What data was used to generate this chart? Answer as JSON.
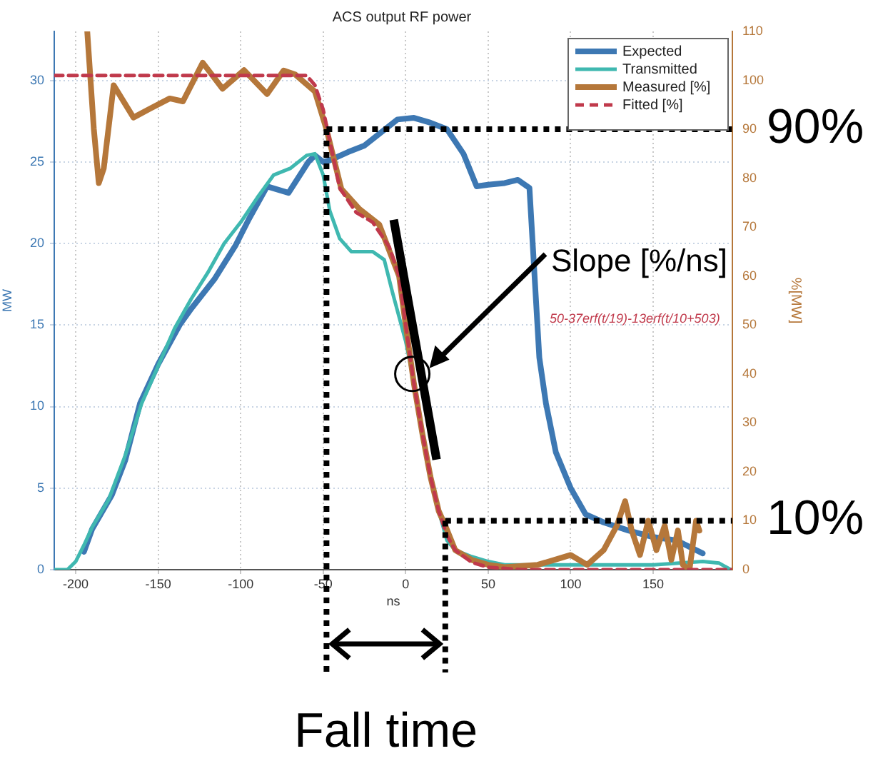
{
  "chart_data": {
    "type": "line",
    "title": "ACS output RF power",
    "xlabel": "ns",
    "ylabel": "MW",
    "y2label": "%[MW]",
    "xlim": [
      -213,
      198
    ],
    "xticks": [
      -200,
      -150,
      -100,
      -50,
      0,
      50,
      100,
      150
    ],
    "ylim": [
      0,
      33
    ],
    "yticks": [
      0,
      5,
      10,
      15,
      20,
      25,
      30
    ],
    "y2lim": [
      0,
      110
    ],
    "y2ticks": [
      0,
      10,
      20,
      30,
      40,
      50,
      60,
      70,
      80,
      90,
      100,
      110
    ],
    "grid": true,
    "legend": "top right",
    "series": [
      {
        "name": "Expected",
        "color": "#3d78b3",
        "x": [
          -195,
          -190,
          -178,
          -170,
          -161,
          -150,
          -137,
          -130,
          -116,
          -103,
          -95,
          -84,
          -71,
          -59,
          -55,
          -50,
          -46,
          -35,
          -25,
          -15,
          -5,
          5,
          15,
          25,
          35,
          43,
          50,
          60,
          68,
          75,
          81,
          85,
          91,
          100,
          109,
          120,
          135,
          150,
          164,
          180
        ],
        "values": [
          1.1,
          2.5,
          4.6,
          6.7,
          10.2,
          12.6,
          15,
          16,
          17.8,
          19.9,
          21.5,
          23.5,
          23.1,
          25,
          25.4,
          25,
          25.1,
          25.6,
          26,
          26.8,
          27.6,
          27.7,
          27.4,
          27,
          25.5,
          23.5,
          23.6,
          23.7,
          23.9,
          23.4,
          13,
          10.2,
          7.2,
          5,
          3.4,
          2.9,
          2.4,
          2,
          1.8,
          1
        ]
      },
      {
        "name": "Transmitted",
        "color": "#3fb8b0",
        "x": [
          -213,
          -205,
          -200,
          -195,
          -190,
          -180,
          -170,
          -160,
          -150,
          -140,
          -130,
          -120,
          -110,
          -100,
          -90,
          -80,
          -70,
          -60,
          -55,
          -50,
          -46,
          -40,
          -33,
          -20,
          -13,
          -8,
          -4,
          0,
          5,
          10,
          15,
          20,
          25,
          30,
          40,
          50,
          60,
          100,
          150,
          180,
          190,
          197
        ],
        "values": [
          0,
          0,
          0.5,
          1.5,
          2.6,
          4.3,
          7,
          10.2,
          12.5,
          14.8,
          16.6,
          18.2,
          20,
          21.3,
          22.8,
          24.2,
          24.6,
          25.4,
          25.5,
          24.2,
          22,
          20.3,
          19.5,
          19.5,
          19,
          17,
          15.5,
          14,
          11.5,
          8.5,
          5.8,
          3.6,
          1.8,
          1.2,
          0.8,
          0.5,
          0.3,
          0.3,
          0.3,
          0.5,
          0.4,
          0
        ],
        "axis": "y"
      },
      {
        "name": "Measured [%]",
        "color": "#b5773a",
        "axis": "y2",
        "x": [
          -193,
          -189,
          -186,
          -183,
          -177,
          -165,
          -155,
          -143,
          -135,
          -123,
          -111,
          -98,
          -84,
          -74,
          -67,
          -55,
          -48,
          -39,
          -28,
          -16,
          -4,
          0,
          5,
          10,
          15,
          20,
          24,
          30,
          40,
          50,
          60,
          80,
          90,
          100,
          110,
          120,
          128,
          133,
          137,
          142,
          147,
          152,
          157,
          161,
          165,
          168,
          172,
          176,
          178
        ],
        "values": [
          110,
          90,
          79,
          82,
          99,
          92.4,
          94.2,
          96.3,
          95.7,
          103.6,
          98.3,
          102.1,
          97.2,
          102,
          101.2,
          97.7,
          90,
          77.8,
          73.7,
          70.5,
          60,
          50,
          38,
          28,
          19,
          12,
          9,
          4,
          2,
          1,
          0.5,
          1,
          2,
          3,
          1,
          4,
          9,
          14,
          8,
          3,
          10,
          4,
          9,
          2,
          8,
          1,
          0,
          10,
          8
        ]
      },
      {
        "name": "Fitted [%]",
        "color": "#c0394b",
        "axis": "y2",
        "line_style": "dashed",
        "x": [
          -213,
          -60,
          -55,
          -50,
          -45,
          -40,
          -30,
          -20,
          -10,
          -4,
          0,
          5,
          10,
          15,
          20,
          25,
          30,
          40,
          50,
          70,
          198
        ],
        "values": [
          101,
          101,
          99,
          94,
          86,
          78,
          73,
          71,
          66,
          60,
          50,
          38,
          28,
          19,
          12,
          7,
          4,
          1.5,
          0.5,
          0,
          0
        ]
      }
    ],
    "ref_lines": [
      {
        "axis": "y2",
        "value": 90,
        "label": "90%",
        "color": "#000000",
        "line_style": "dotted"
      },
      {
        "axis": "y2",
        "value": 10,
        "label": "10%",
        "color": "#000000",
        "line_style": "dotted"
      },
      {
        "axis": "x",
        "value": -48,
        "color": "#000000",
        "line_style": "dotted"
      },
      {
        "axis": "x",
        "value": 24,
        "color": "#000000",
        "line_style": "dotted"
      }
    ],
    "annotations": [
      "Slope [%/ns]",
      "Fall time",
      "50-37erf(t/19)-13erf(t/10+503)"
    ]
  }
}
